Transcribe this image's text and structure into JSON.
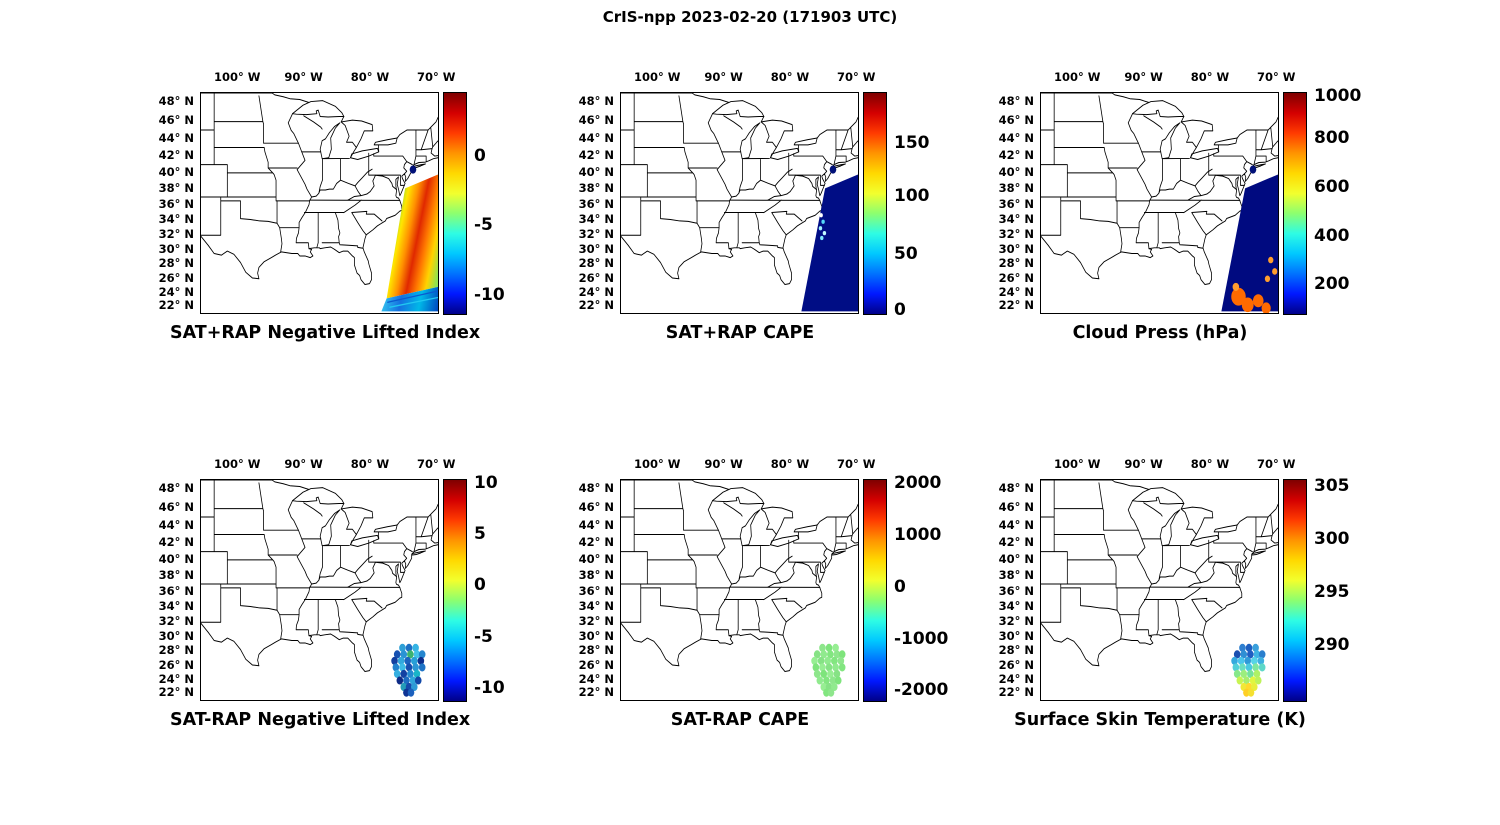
{
  "figure": {
    "title": "CrIS-npp 2023-02-20 (171903 UTC)"
  },
  "shared": {
    "coastal_dot_color": "#001078",
    "colorbar_colors": [
      "#7f0000",
      "#d40000",
      "#ff3b00",
      "#ff9400",
      "#ffd900",
      "#f2ff2e",
      "#8cff70",
      "#2efce4",
      "#00c8ff",
      "#0072ff",
      "#0018ff",
      "#000088"
    ],
    "cluster_points": [
      [
        306,
        206
      ],
      [
        316,
        206
      ],
      [
        326,
        206
      ],
      [
        298,
        214
      ],
      [
        308,
        214
      ],
      [
        318,
        214
      ],
      [
        328,
        214
      ],
      [
        336,
        214
      ],
      [
        294,
        222
      ],
      [
        304,
        222
      ],
      [
        314,
        222
      ],
      [
        324,
        222
      ],
      [
        334,
        222
      ],
      [
        296,
        230
      ],
      [
        306,
        230
      ],
      [
        316,
        230
      ],
      [
        326,
        230
      ],
      [
        336,
        230
      ],
      [
        298,
        238
      ],
      [
        308,
        238
      ],
      [
        318,
        238
      ],
      [
        328,
        238
      ],
      [
        302,
        246
      ],
      [
        312,
        246
      ],
      [
        322,
        246
      ],
      [
        330,
        246
      ],
      [
        308,
        254
      ],
      [
        316,
        254
      ],
      [
        324,
        254
      ],
      [
        312,
        261
      ],
      [
        319,
        261
      ]
    ]
  },
  "chart_data": {
    "type": "map-swath-grid",
    "title": "CrIS-npp 2023-02-20 (171903 UTC)",
    "layout": "2 rows x 3 columns of US maps with jet colorbars",
    "map_region": {
      "lon_min": -106,
      "lon_max": -70,
      "lat_min": 21,
      "lat_max": 49
    },
    "axes": {
      "x_ticks": [
        {
          "label": "100° W",
          "pos": 0.157
        },
        {
          "label": "90° W",
          "pos": 0.437
        },
        {
          "label": "80° W",
          "pos": 0.717
        },
        {
          "label": "70° W",
          "pos": 0.997
        }
      ],
      "y_ticks": [
        {
          "label": "48° N",
          "pos": 0.043
        },
        {
          "label": "46° N",
          "pos": 0.128
        },
        {
          "label": "44° N",
          "pos": 0.208
        },
        {
          "label": "42° N",
          "pos": 0.287
        },
        {
          "label": "40° N",
          "pos": 0.363
        },
        {
          "label": "38° N",
          "pos": 0.437
        },
        {
          "label": "36° N",
          "pos": 0.508
        },
        {
          "label": "34° N",
          "pos": 0.578
        },
        {
          "label": "32° N",
          "pos": 0.647
        },
        {
          "label": "30° N",
          "pos": 0.713
        },
        {
          "label": "28° N",
          "pos": 0.779
        },
        {
          "label": "26° N",
          "pos": 0.844
        },
        {
          "label": "24° N",
          "pos": 0.907
        },
        {
          "label": "22° N",
          "pos": 0.969
        }
      ]
    },
    "panels": [
      {
        "title": "SAT+RAP Negative Lifted Index",
        "colorbar_ticks": [
          {
            "label": "0",
            "pos": 0.29
          },
          {
            "label": "-5",
            "pos": 0.6
          },
          {
            "label": "-10",
            "pos": 0.92
          }
        ],
        "swath": "diagonal satellite swath off US east coast, rainbow (green/yellow/red) values, blue scan rows at south end",
        "band_colors": [
          "#6fd84a",
          "#ffe600",
          "#ff9000",
          "#e02800",
          "#ff7800",
          "#ffd300",
          "#8fe24e"
        ],
        "band_bottom_colors": [
          "#35c8f0",
          "#1470e0",
          "#00b8e8",
          "#0048c0"
        ],
        "scan_line_colors": [
          "#0a58d0",
          "#20c8f0"
        ]
      },
      {
        "title": "SAT+RAP CAPE",
        "colorbar_ticks": [
          {
            "label": "150",
            "pos": 0.23
          },
          {
            "label": "100",
            "pos": 0.47
          },
          {
            "label": "50",
            "pos": 0.735
          },
          {
            "label": "0",
            "pos": 0.985
          }
        ],
        "swath": "same swath, near-zero CAPE (dark blue) with a few bright speckles",
        "swath_color": "#000d85",
        "speckle_colors": [
          "#ffffff",
          "#54d8f8",
          "#9ff0ff",
          "#c0f8ff",
          "#7fe8ff"
        ]
      },
      {
        "title": "Cloud Press (hPa)",
        "colorbar_ticks": [
          {
            "label": "1000",
            "pos": 0.02
          },
          {
            "label": "800",
            "pos": 0.21
          },
          {
            "label": "600",
            "pos": 0.43
          },
          {
            "label": "400",
            "pos": 0.65
          },
          {
            "label": "200",
            "pos": 0.87
          }
        ],
        "swath": "same swath, high cloud (dark blue) with low-cloud orange patches at south end",
        "swath_color": "#000a80",
        "cloud_color": "#ff6a00",
        "cloud_color_2": "#ff9e2e"
      },
      {
        "title": "SAT-RAP Negative Lifted Index",
        "colorbar_ticks": [
          {
            "label": "10",
            "pos": 0.02
          },
          {
            "label": "5",
            "pos": 0.25
          },
          {
            "label": "0",
            "pos": 0.48
          },
          {
            "label": "-5",
            "pos": 0.715
          },
          {
            "label": "-10",
            "pos": 0.945
          }
        ],
        "swath": "small cluster of retrieval footprints off the southeast coast, mostly blue/cyan",
        "point_colors": [
          "#2e9fd6",
          "#1d6fc4",
          "#36b4e4",
          "#1652b2",
          "#2a93d4",
          "#3cb371",
          "#44c2ea",
          "#2586cf",
          "#123f9f",
          "#31a8dc",
          "#1a63bf",
          "#27a0d8",
          "#0e2f8d",
          "#2080cc",
          "#3bbbe6",
          "#174fae",
          "#2b97d5",
          "#1e74c6",
          "#35afe0",
          "#1241a2",
          "#2489d0",
          "#19b5c8",
          "#0d2b86",
          "#1c6cc2",
          "#2ea4da",
          "#1148a8",
          "#239bb8",
          "#154aab",
          "#2d9bd6",
          "#0f3494",
          "#1b60bd"
        ]
      },
      {
        "title": "SAT-RAP CAPE",
        "colorbar_ticks": [
          {
            "label": "2000",
            "pos": 0.02
          },
          {
            "label": "1000",
            "pos": 0.255
          },
          {
            "label": "0",
            "pos": 0.49
          },
          {
            "label": "-1000",
            "pos": 0.725
          },
          {
            "label": "-2000",
            "pos": 0.955
          }
        ],
        "swath": "same cluster, uniform near-zero difference (light green)",
        "point_colors": [
          "#8ee68c",
          "#7ee47c",
          "#97ee93",
          "#86e285",
          "#90ea8e",
          "#82e680"
        ]
      },
      {
        "title": "Surface Skin Temperature (K)",
        "colorbar_ticks": [
          {
            "label": "305",
            "pos": 0.03
          },
          {
            "label": "300",
            "pos": 0.27
          },
          {
            "label": "295",
            "pos": 0.51
          },
          {
            "label": "290",
            "pos": 0.75
          }
        ],
        "swath": "same cluster, cooler blue to the north grading to yellow (warm) to the south",
        "point_colors": [
          "#2f7fd0",
          "#1e5fc0",
          "#3aa0dc",
          "#1a4fb0",
          "#2f8fd4",
          "#215fc2",
          "#3fb4e4",
          "#2a7fce",
          "#35a9de",
          "#49c6ec",
          "#2f9ad8",
          "#57d4e8",
          "#3fb0e0",
          "#52cfd8",
          "#6adfc0",
          "#49c8e0",
          "#7fe6a0",
          "#5ed8c8",
          "#86e88a",
          "#9cee7e",
          "#74e29a",
          "#aef266",
          "#c8f452",
          "#a8ee6e",
          "#e0f640",
          "#bdf25a",
          "#f0e838",
          "#ffd92e",
          "#e8ee3c",
          "#ffcf26",
          "#f5e030"
        ]
      }
    ]
  }
}
